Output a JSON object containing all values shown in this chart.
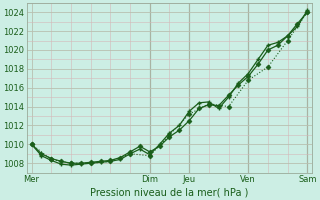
{
  "xlabel": "Pression niveau de la mer( hPa )",
  "bg_color": "#cceee4",
  "grid_major_color": "#b8c8b8",
  "grid_minor_color": "#d0c8c8",
  "line_color": "#1a5e1a",
  "ylim": [
    1007.0,
    1025.0
  ],
  "yticks": [
    1008,
    1010,
    1012,
    1014,
    1016,
    1018,
    1020,
    1022,
    1024
  ],
  "day_labels": [
    "Mer",
    "Dim",
    "Jeu",
    "Ven",
    "Sam"
  ],
  "day_positions": [
    0,
    12,
    16,
    22,
    28
  ],
  "vline_positions": [
    12,
    16,
    22,
    28
  ],
  "line1_x": [
    0,
    1,
    2,
    3,
    4,
    5,
    6,
    7,
    8,
    9,
    10,
    11,
    12,
    13,
    14,
    15,
    16,
    17,
    18,
    19,
    20,
    21,
    22,
    23,
    24,
    25,
    26,
    27,
    28
  ],
  "line1_y": [
    1010.0,
    1009.0,
    1008.5,
    1008.2,
    1008.0,
    1008.0,
    1008.1,
    1008.2,
    1008.3,
    1008.6,
    1009.2,
    1009.8,
    1009.2,
    1009.8,
    1010.8,
    1011.5,
    1012.5,
    1013.8,
    1014.2,
    1014.1,
    1015.2,
    1016.3,
    1017.2,
    1018.5,
    1020.0,
    1020.5,
    1021.5,
    1022.8,
    1024.0
  ],
  "line2_x": [
    0,
    1,
    2,
    3,
    4,
    5,
    6,
    7,
    8,
    9,
    10,
    11,
    12,
    13,
    14,
    15,
    16,
    17,
    18,
    19,
    20,
    21,
    22,
    23,
    24,
    25,
    26,
    27,
    28
  ],
  "line2_y": [
    1010.0,
    1008.8,
    1008.3,
    1007.9,
    1007.8,
    1007.9,
    1008.0,
    1008.1,
    1008.2,
    1008.4,
    1009.0,
    1009.5,
    1008.9,
    1010.0,
    1011.2,
    1012.0,
    1013.5,
    1014.4,
    1014.5,
    1013.8,
    1015.0,
    1016.5,
    1017.5,
    1019.0,
    1020.5,
    1020.8,
    1021.5,
    1022.5,
    1024.2
  ],
  "line3_x": [
    0,
    2,
    4,
    6,
    8,
    10,
    12,
    14,
    16,
    18,
    20,
    22,
    24,
    26,
    28
  ],
  "line3_y": [
    1010.0,
    1008.4,
    1008.0,
    1008.0,
    1008.2,
    1009.0,
    1008.8,
    1011.0,
    1013.2,
    1014.3,
    1014.0,
    1016.8,
    1018.2,
    1021.0,
    1024.0
  ]
}
